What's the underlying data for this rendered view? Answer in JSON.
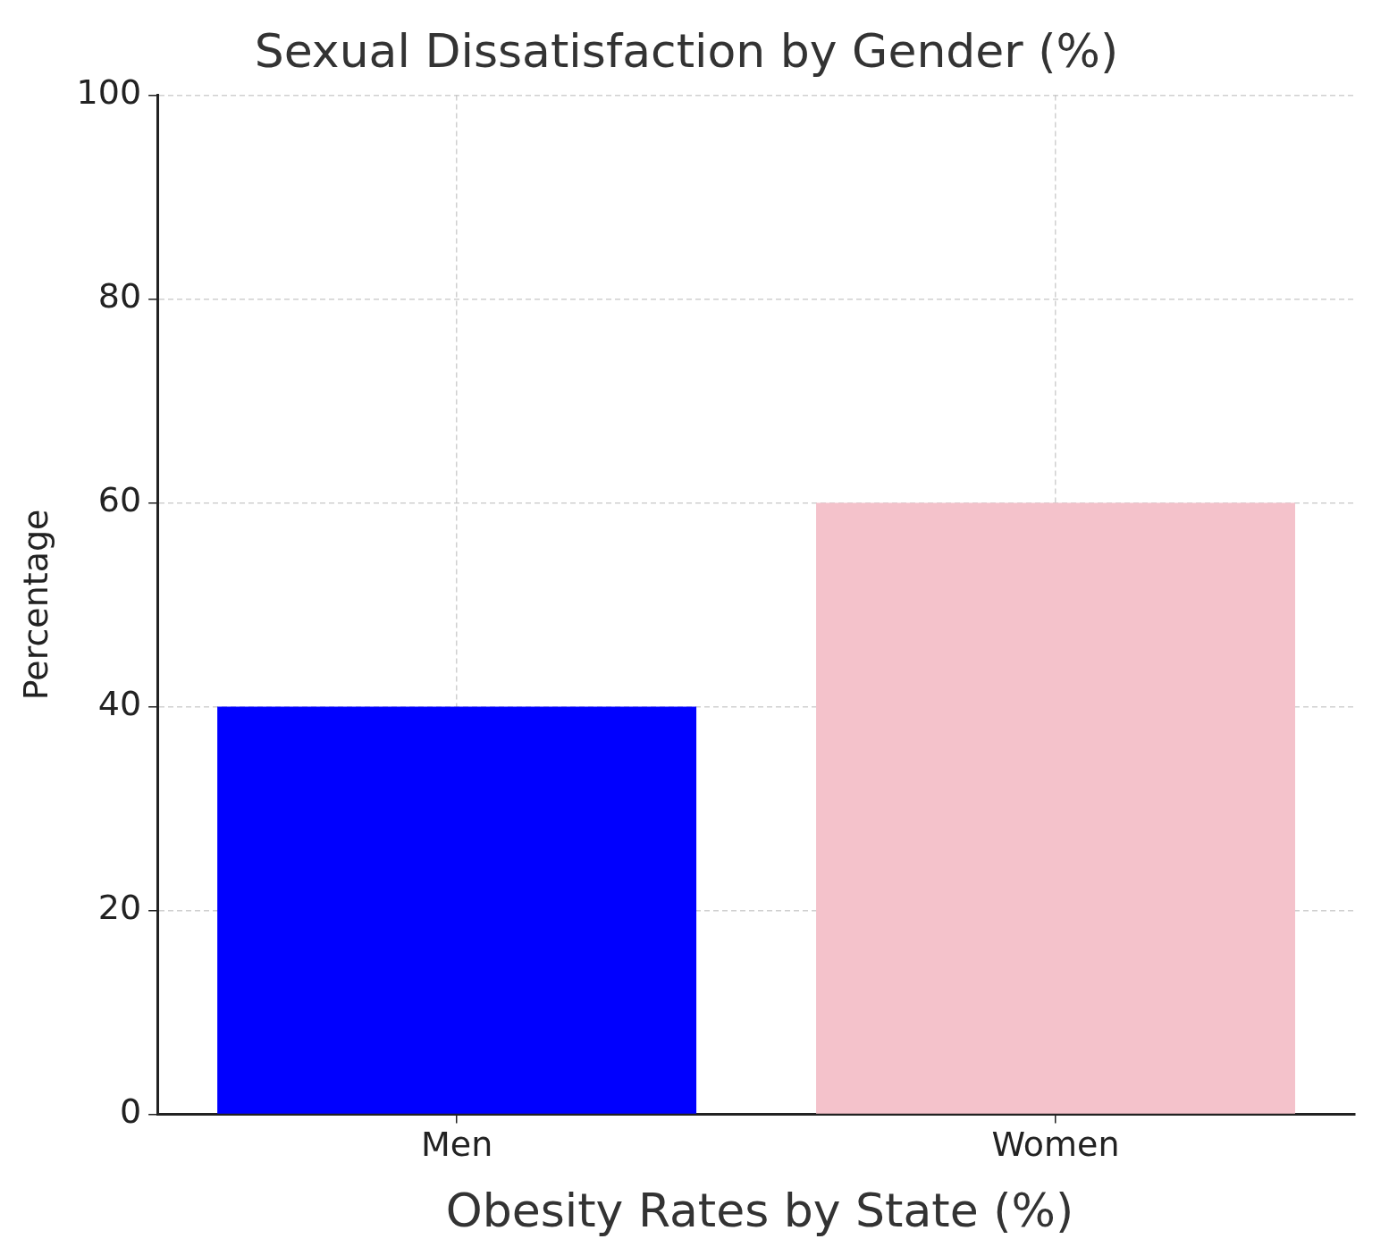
{
  "chart_data": [
    {
      "type": "bar",
      "title": "Sexual Dissatisfaction by Gender (%)",
      "ylabel": "Percentage",
      "categories": [
        "Men",
        "Women"
      ],
      "values": [
        40,
        60
      ],
      "colors": [
        "#0000ff",
        "#f4c2cb"
      ],
      "ylim": [
        0,
        100
      ],
      "yticks": [
        0,
        20,
        40,
        60,
        80,
        100
      ],
      "grid": true
    },
    {
      "type": "bar",
      "title": "Obesity Rates by State (%)"
    }
  ]
}
